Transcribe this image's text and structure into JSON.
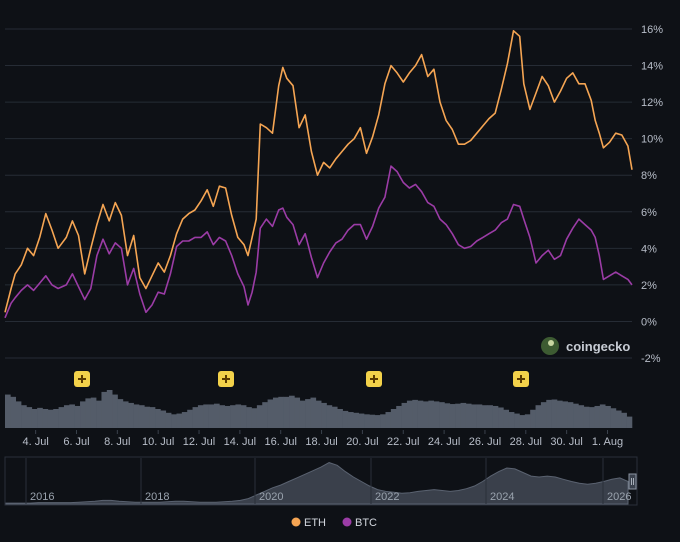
{
  "chart_data": {
    "type": "line",
    "title": "",
    "xlabel": "",
    "ylabel": "",
    "x_ticks": [
      "4. Jul",
      "6. Jul",
      "8. Jul",
      "10. Jul",
      "12. Jul",
      "14. Jul",
      "16. Jul",
      "18. Jul",
      "20. Jul",
      "22. Jul",
      "24. Jul",
      "26. Jul",
      "28. Jul",
      "30. Jul",
      "1. Aug"
    ],
    "y_ticks": [
      "-2%",
      "0%",
      "2%",
      "4%",
      "6%",
      "8%",
      "10%",
      "12%",
      "14%",
      "16%"
    ],
    "ylim": [
      -2,
      16
    ],
    "grid": true,
    "legend_position": "bottom-center",
    "brand_label": "coingecko",
    "x_day_range": [
      2.5,
      33.2
    ],
    "series": [
      {
        "name": "ETH",
        "color": "#f5a553",
        "points": [
          [
            2.5,
            0.5
          ],
          [
            2.8,
            1.8
          ],
          [
            3.0,
            2.6
          ],
          [
            3.3,
            3.1
          ],
          [
            3.6,
            4.0
          ],
          [
            3.9,
            3.6
          ],
          [
            4.2,
            4.6
          ],
          [
            4.5,
            5.9
          ],
          [
            4.8,
            5.0
          ],
          [
            5.1,
            4.0
          ],
          [
            5.5,
            4.6
          ],
          [
            5.8,
            5.5
          ],
          [
            6.1,
            4.7
          ],
          [
            6.4,
            2.6
          ],
          [
            6.7,
            4.0
          ],
          [
            7.0,
            5.3
          ],
          [
            7.3,
            6.4
          ],
          [
            7.6,
            5.5
          ],
          [
            7.9,
            6.5
          ],
          [
            8.2,
            5.8
          ],
          [
            8.5,
            3.6
          ],
          [
            8.8,
            4.7
          ],
          [
            9.1,
            2.4
          ],
          [
            9.4,
            1.8
          ],
          [
            9.7,
            2.5
          ],
          [
            10.0,
            3.2
          ],
          [
            10.3,
            2.7
          ],
          [
            10.6,
            3.6
          ],
          [
            10.9,
            4.8
          ],
          [
            11.2,
            5.6
          ],
          [
            11.5,
            5.9
          ],
          [
            11.8,
            6.1
          ],
          [
            12.1,
            6.6
          ],
          [
            12.4,
            7.2
          ],
          [
            12.7,
            6.3
          ],
          [
            13.0,
            7.4
          ],
          [
            13.3,
            7.3
          ],
          [
            13.6,
            5.8
          ],
          [
            13.9,
            4.6
          ],
          [
            14.2,
            4.2
          ],
          [
            14.4,
            3.6
          ],
          [
            14.6,
            4.6
          ],
          [
            14.8,
            5.6
          ],
          [
            15.0,
            10.8
          ],
          [
            15.3,
            10.6
          ],
          [
            15.6,
            10.3
          ],
          [
            15.9,
            12.9
          ],
          [
            16.1,
            13.9
          ],
          [
            16.3,
            13.3
          ],
          [
            16.6,
            12.9
          ],
          [
            16.9,
            10.6
          ],
          [
            17.2,
            11.3
          ],
          [
            17.5,
            9.3
          ],
          [
            17.8,
            8.0
          ],
          [
            18.1,
            8.7
          ],
          [
            18.4,
            8.4
          ],
          [
            18.7,
            8.9
          ],
          [
            19.0,
            9.3
          ],
          [
            19.3,
            9.7
          ],
          [
            19.6,
            10.0
          ],
          [
            19.9,
            10.6
          ],
          [
            20.2,
            9.2
          ],
          [
            20.5,
            10.1
          ],
          [
            20.8,
            11.3
          ],
          [
            21.1,
            13.0
          ],
          [
            21.4,
            14.0
          ],
          [
            21.7,
            13.6
          ],
          [
            22.0,
            13.1
          ],
          [
            22.3,
            13.6
          ],
          [
            22.6,
            14.0
          ],
          [
            22.9,
            14.6
          ],
          [
            23.2,
            13.4
          ],
          [
            23.5,
            13.8
          ],
          [
            23.8,
            12.0
          ],
          [
            24.1,
            11.0
          ],
          [
            24.4,
            10.5
          ],
          [
            24.7,
            9.7
          ],
          [
            25.0,
            9.7
          ],
          [
            25.3,
            9.9
          ],
          [
            25.6,
            10.3
          ],
          [
            25.9,
            10.7
          ],
          [
            26.2,
            11.1
          ],
          [
            26.5,
            11.4
          ],
          [
            26.8,
            12.7
          ],
          [
            27.1,
            14.1
          ],
          [
            27.4,
            15.9
          ],
          [
            27.7,
            15.6
          ],
          [
            27.9,
            13.0
          ],
          [
            28.2,
            11.6
          ],
          [
            28.5,
            12.5
          ],
          [
            28.8,
            13.4
          ],
          [
            29.1,
            12.9
          ],
          [
            29.4,
            12.0
          ],
          [
            29.7,
            12.6
          ],
          [
            30.0,
            13.3
          ],
          [
            30.3,
            13.6
          ],
          [
            30.6,
            13.0
          ],
          [
            30.9,
            13.0
          ],
          [
            31.2,
            12.1
          ],
          [
            31.4,
            11.0
          ],
          [
            31.6,
            10.3
          ],
          [
            31.8,
            9.5
          ],
          [
            32.1,
            9.8
          ],
          [
            32.4,
            10.3
          ],
          [
            32.7,
            10.2
          ],
          [
            33.0,
            9.6
          ],
          [
            33.2,
            8.3
          ]
        ]
      },
      {
        "name": "BTC",
        "color": "#9b3ca6",
        "points": [
          [
            2.5,
            0.2
          ],
          [
            2.8,
            1.0
          ],
          [
            3.0,
            1.3
          ],
          [
            3.3,
            1.7
          ],
          [
            3.6,
            2.0
          ],
          [
            3.9,
            1.7
          ],
          [
            4.2,
            2.1
          ],
          [
            4.5,
            2.5
          ],
          [
            4.8,
            2.0
          ],
          [
            5.1,
            1.8
          ],
          [
            5.5,
            2.0
          ],
          [
            5.8,
            2.6
          ],
          [
            6.1,
            1.9
          ],
          [
            6.4,
            1.2
          ],
          [
            6.7,
            1.8
          ],
          [
            7.0,
            3.6
          ],
          [
            7.3,
            4.5
          ],
          [
            7.6,
            3.7
          ],
          [
            7.9,
            4.3
          ],
          [
            8.2,
            4.0
          ],
          [
            8.5,
            2.0
          ],
          [
            8.8,
            2.9
          ],
          [
            9.1,
            1.5
          ],
          [
            9.4,
            0.5
          ],
          [
            9.7,
            0.9
          ],
          [
            10.0,
            1.6
          ],
          [
            10.3,
            1.5
          ],
          [
            10.6,
            2.6
          ],
          [
            10.9,
            4.1
          ],
          [
            11.2,
            4.4
          ],
          [
            11.5,
            4.4
          ],
          [
            11.8,
            4.6
          ],
          [
            12.1,
            4.6
          ],
          [
            12.4,
            4.9
          ],
          [
            12.7,
            4.2
          ],
          [
            13.0,
            4.6
          ],
          [
            13.3,
            4.4
          ],
          [
            13.6,
            3.6
          ],
          [
            13.9,
            2.6
          ],
          [
            14.2,
            1.9
          ],
          [
            14.4,
            0.9
          ],
          [
            14.6,
            1.6
          ],
          [
            14.8,
            2.7
          ],
          [
            15.0,
            5.1
          ],
          [
            15.3,
            5.6
          ],
          [
            15.6,
            5.2
          ],
          [
            15.9,
            6.1
          ],
          [
            16.1,
            6.2
          ],
          [
            16.3,
            5.7
          ],
          [
            16.6,
            5.3
          ],
          [
            16.9,
            4.2
          ],
          [
            17.2,
            4.8
          ],
          [
            17.5,
            3.5
          ],
          [
            17.8,
            2.4
          ],
          [
            18.1,
            3.2
          ],
          [
            18.4,
            3.8
          ],
          [
            18.7,
            4.3
          ],
          [
            19.0,
            4.5
          ],
          [
            19.3,
            5.0
          ],
          [
            19.6,
            5.3
          ],
          [
            19.9,
            5.3
          ],
          [
            20.2,
            4.5
          ],
          [
            20.5,
            5.2
          ],
          [
            20.8,
            6.2
          ],
          [
            21.1,
            6.8
          ],
          [
            21.4,
            8.5
          ],
          [
            21.7,
            8.2
          ],
          [
            22.0,
            7.6
          ],
          [
            22.3,
            7.3
          ],
          [
            22.6,
            7.5
          ],
          [
            22.9,
            7.1
          ],
          [
            23.2,
            6.5
          ],
          [
            23.5,
            6.3
          ],
          [
            23.8,
            5.6
          ],
          [
            24.1,
            5.3
          ],
          [
            24.4,
            4.8
          ],
          [
            24.7,
            4.2
          ],
          [
            25.0,
            4.0
          ],
          [
            25.3,
            4.1
          ],
          [
            25.6,
            4.4
          ],
          [
            25.9,
            4.6
          ],
          [
            26.2,
            4.8
          ],
          [
            26.5,
            5.0
          ],
          [
            26.8,
            5.4
          ],
          [
            27.1,
            5.6
          ],
          [
            27.4,
            6.4
          ],
          [
            27.7,
            6.3
          ],
          [
            27.9,
            5.6
          ],
          [
            28.2,
            4.6
          ],
          [
            28.5,
            3.2
          ],
          [
            28.8,
            3.6
          ],
          [
            29.1,
            3.9
          ],
          [
            29.4,
            3.4
          ],
          [
            29.7,
            3.6
          ],
          [
            30.0,
            4.5
          ],
          [
            30.3,
            5.1
          ],
          [
            30.6,
            5.6
          ],
          [
            30.9,
            5.3
          ],
          [
            31.2,
            5.0
          ],
          [
            31.4,
            4.6
          ],
          [
            31.6,
            3.6
          ],
          [
            31.8,
            2.3
          ],
          [
            32.1,
            2.5
          ],
          [
            32.4,
            2.7
          ],
          [
            32.7,
            2.5
          ],
          [
            33.0,
            2.3
          ],
          [
            33.2,
            2.0
          ]
        ]
      }
    ],
    "volume": {
      "values": [
        0.88,
        0.82,
        0.7,
        0.6,
        0.55,
        0.5,
        0.53,
        0.5,
        0.48,
        0.5,
        0.55,
        0.6,
        0.62,
        0.58,
        0.7,
        0.78,
        0.8,
        0.72,
        0.95,
        1.0,
        0.88,
        0.76,
        0.7,
        0.66,
        0.62,
        0.6,
        0.56,
        0.55,
        0.5,
        0.46,
        0.4,
        0.36,
        0.38,
        0.42,
        0.48,
        0.55,
        0.6,
        0.62,
        0.62,
        0.64,
        0.6,
        0.58,
        0.6,
        0.62,
        0.6,
        0.55,
        0.52,
        0.6,
        0.68,
        0.75,
        0.8,
        0.82,
        0.82,
        0.85,
        0.8,
        0.72,
        0.76,
        0.8,
        0.72,
        0.66,
        0.6,
        0.56,
        0.5,
        0.45,
        0.42,
        0.4,
        0.38,
        0.36,
        0.35,
        0.34,
        0.36,
        0.42,
        0.5,
        0.58,
        0.66,
        0.72,
        0.74,
        0.72,
        0.7,
        0.72,
        0.7,
        0.68,
        0.65,
        0.63,
        0.64,
        0.66,
        0.64,
        0.62,
        0.62,
        0.6,
        0.6,
        0.58,
        0.54,
        0.48,
        0.42,
        0.38,
        0.34,
        0.36,
        0.48,
        0.6,
        0.68,
        0.74,
        0.75,
        0.72,
        0.7,
        0.68,
        0.64,
        0.6,
        0.56,
        0.55,
        0.58,
        0.62,
        0.58,
        0.52,
        0.46,
        0.4,
        0.3
      ],
      "event_markers": [
        "flag-icon",
        "flag-icon",
        "flag-icon",
        "flag-icon"
      ]
    },
    "navigator": {
      "year_labels": [
        "2016",
        "2018",
        "2020",
        "2022",
        "2024",
        "2026"
      ],
      "values": [
        0.02,
        0.02,
        0.02,
        0.02,
        0.03,
        0.03,
        0.03,
        0.03,
        0.03,
        0.04,
        0.05,
        0.06,
        0.08,
        0.08,
        0.06,
        0.05,
        0.04,
        0.04,
        0.04,
        0.04,
        0.05,
        0.06,
        0.06,
        0.05,
        0.04,
        0.04,
        0.04,
        0.05,
        0.06,
        0.08,
        0.12,
        0.2,
        0.28,
        0.36,
        0.42,
        0.5,
        0.58,
        0.66,
        0.74,
        0.82,
        0.92,
        0.86,
        0.72,
        0.6,
        0.5,
        0.4,
        0.32,
        0.28,
        0.26,
        0.24,
        0.25,
        0.28,
        0.3,
        0.32,
        0.3,
        0.28,
        0.3,
        0.34,
        0.4,
        0.5,
        0.62,
        0.72,
        0.8,
        0.78,
        0.7,
        0.62,
        0.6,
        0.62,
        0.6,
        0.55,
        0.5,
        0.46,
        0.44,
        0.46,
        0.5,
        0.55,
        0.58,
        0.5
      ]
    }
  }
}
